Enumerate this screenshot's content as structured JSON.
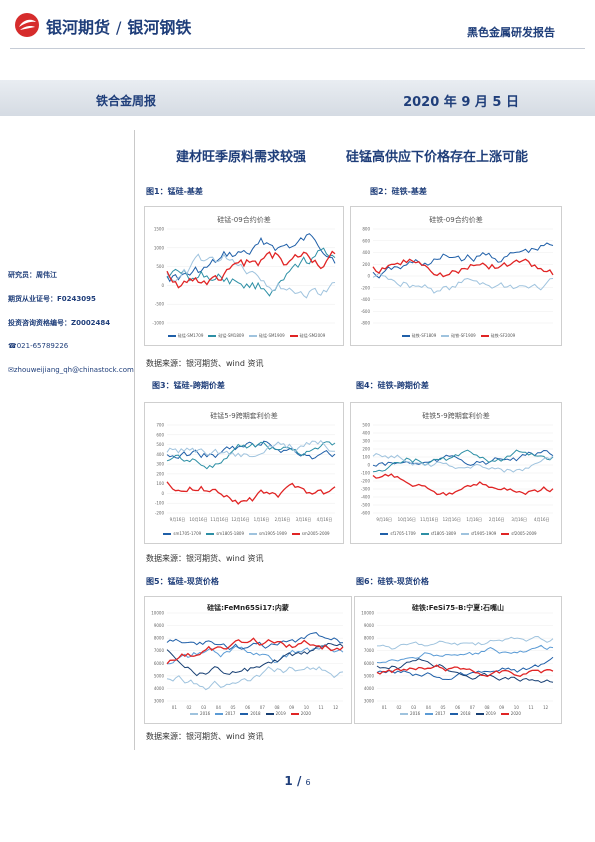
{
  "header": {
    "brand_left": "银河期货",
    "brand_slash": "/",
    "brand_right": "银河钢铁",
    "report_type": "黑色金属研发报告"
  },
  "band": {
    "left": "铁合金周报",
    "right": "2020 年 9 月 5 日"
  },
  "headline": {
    "left": "建材旺季原料需求较强",
    "right": "硅锰高供应下价格存在上涨可能"
  },
  "sidebar": {
    "researcher": "研究员：周伟江",
    "license": "期货从业证号：F0243095",
    "advisor": "投资咨询资格编号：Z0002484",
    "phone": "☎021-65789226",
    "email": "✉zhouweijiang_qh@chinastock.com"
  },
  "figures": [
    {
      "title": "图1：锰硅-基差",
      "chart_title": "硅锰-09合约价差",
      "legend": [
        "硅锰-SM1709",
        "硅锰-SM1809",
        "硅锰-SM1909",
        "硅锰-SM2009"
      ],
      "yticks": [
        "1500",
        "1000",
        "500",
        "0",
        "-500",
        "-1000"
      ],
      "colors": [
        "#1f5fa8",
        "#2d8fa5",
        "#9fc3de",
        "#e02424"
      ]
    },
    {
      "title": "图2：硅铁-基差",
      "chart_title": "硅铁-09合约价差",
      "legend": [
        "硅铁-SF1809",
        "硅铁-SF1909",
        "硅铁-SF2009"
      ],
      "yticks": [
        "800",
        "600",
        "400",
        "200",
        "0",
        "-200",
        "-400",
        "-600",
        "-800"
      ],
      "colors": [
        "#1f5fa8",
        "#9fc3de",
        "#e02424"
      ]
    },
    {
      "title": "图3：锰硅-跨期价差",
      "chart_title": "硅锰5-9跨期套利价差",
      "legend": [
        "sm1705-1709",
        "sm1805-1809",
        "sm1905-1909",
        "sm2005-2009"
      ],
      "yticks": [
        "700",
        "600",
        "500",
        "400",
        "300",
        "200",
        "100",
        "0",
        "-100",
        "-200"
      ],
      "xticks": [
        "9月16日",
        "10月16日",
        "11月16日",
        "12月16日",
        "1月16日",
        "2月16日",
        "3月16日",
        "4月16日"
      ],
      "colors": [
        "#1f5fa8",
        "#2d8fa5",
        "#9fc3de",
        "#e02424"
      ]
    },
    {
      "title": "图4：硅铁-跨期价差",
      "chart_title": "硅铁5-9跨期套利价差",
      "legend": [
        "sf1705-1709",
        "sf1805-1809",
        "sf1905-1909",
        "sf2005-2009"
      ],
      "yticks": [
        "500",
        "400",
        "300",
        "200",
        "100",
        "0",
        "-100",
        "-200",
        "-300",
        "-400",
        "-500",
        "-600"
      ],
      "xticks": [
        "9月16日",
        "10月16日",
        "11月16日",
        "12月16日",
        "1月16日",
        "2月16日",
        "3月16日",
        "4月16日"
      ],
      "colors": [
        "#1f5fa8",
        "#2d8fa5",
        "#9fc3de",
        "#e02424"
      ]
    },
    {
      "title": "图5：锰硅-现货价格",
      "chart_title": "硅锰:FeMn65Si17:内蒙",
      "legend": [
        "2016",
        "2017",
        "2018",
        "2019",
        "2020"
      ],
      "yticks": [
        "10000",
        "9000",
        "8000",
        "7000",
        "6000",
        "5000",
        "4000",
        "3000"
      ],
      "xticks": [
        "01",
        "02",
        "03",
        "04",
        "05",
        "06",
        "07",
        "08",
        "09",
        "10",
        "11",
        "12"
      ],
      "colors": [
        "#9fc3de",
        "#5b9bd5",
        "#1f5fa8",
        "#173f73",
        "#e02424"
      ]
    },
    {
      "title": "图6：硅铁-现货价格",
      "chart_title": "硅铁:FeSi75-B:宁夏:石嘴山",
      "legend": [
        "2016",
        "2017",
        "2018",
        "2019",
        "2020"
      ],
      "yticks": [
        "10000",
        "9000",
        "8000",
        "7000",
        "6000",
        "5000",
        "4000",
        "3000"
      ],
      "xticks": [
        "01",
        "02",
        "03",
        "04",
        "05",
        "06",
        "07",
        "08",
        "09",
        "10",
        "11",
        "12"
      ],
      "colors": [
        "#9fc3de",
        "#5b9bd5",
        "#1f5fa8",
        "#173f73",
        "#e02424"
      ]
    }
  ],
  "source_text": "数据来源：银河期货、wind 资讯",
  "page": {
    "current": "1",
    "sep": "/",
    "total": "6"
  }
}
